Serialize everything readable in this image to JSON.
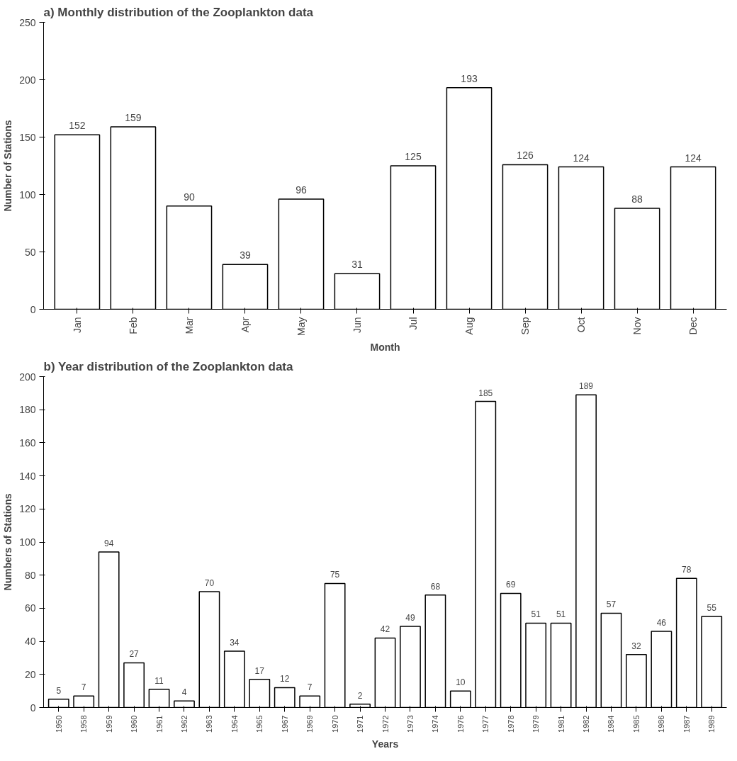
{
  "chart_data": [
    {
      "type": "bar",
      "title": "a) Monthly distribution of the Zooplankton data",
      "xlabel": "Month",
      "ylabel": "Number of Stations",
      "categories": [
        "Jan",
        "Feb",
        "Mar",
        "Apr",
        "May",
        "Jun",
        "Jul",
        "Aug",
        "Sep",
        "Oct",
        "Nov",
        "Dec"
      ],
      "values": [
        152,
        159,
        90,
        39,
        96,
        31,
        125,
        193,
        126,
        124,
        88,
        124
      ],
      "color": "#ffffff",
      "ylim": [
        0,
        250
      ],
      "yticks": [
        0,
        50,
        100,
        150,
        200,
        250
      ],
      "data_labels": true,
      "grid": false
    },
    {
      "type": "bar",
      "title": "b) Year distribution of the Zooplankton data",
      "xlabel": "Years",
      "ylabel": "Numbers of Stations",
      "categories": [
        "1950",
        "1958",
        "1959",
        "1960",
        "1961",
        "1962",
        "1963",
        "1964",
        "1965",
        "1967",
        "1969",
        "1970",
        "1971",
        "1972",
        "1973",
        "1974",
        "1976",
        "1977",
        "1978",
        "1979",
        "1981",
        "1982",
        "1984",
        "1985",
        "1986",
        "1987",
        "1989"
      ],
      "values": [
        5,
        7,
        94,
        27,
        11,
        4,
        70,
        34,
        17,
        12,
        7,
        75,
        2,
        42,
        49,
        68,
        10,
        185,
        69,
        51,
        51,
        189,
        57,
        32,
        46,
        78,
        55
      ],
      "color": "#ffffff",
      "ylim": [
        0,
        200
      ],
      "yticks": [
        0,
        20,
        40,
        60,
        80,
        100,
        120,
        140,
        160,
        180,
        200
      ],
      "data_labels": true,
      "grid": false
    }
  ]
}
